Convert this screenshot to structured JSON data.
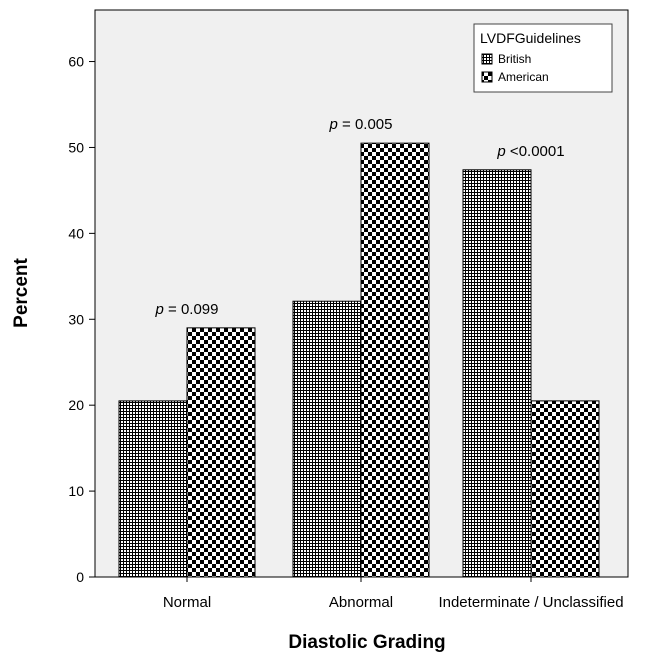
{
  "chart_data": {
    "type": "bar",
    "title": "",
    "xlabel": "Diastolic Grading",
    "ylabel": "Percent",
    "categories": [
      "Normal",
      "Abnormal",
      "Indeterminate / Unclassified"
    ],
    "series": [
      {
        "name": "British",
        "values": [
          20.5,
          32.1,
          47.4
        ],
        "pattern": "fine-grid"
      },
      {
        "name": "American",
        "values": [
          29.0,
          50.5,
          20.5
        ],
        "pattern": "checkerboard"
      }
    ],
    "annotations": [
      {
        "category": "Normal",
        "prefix": "p",
        "text": " = 0.099"
      },
      {
        "category": "Abnormal",
        "prefix": "p",
        "text": " = 0.005"
      },
      {
        "category": "Indeterminate / Unclassified",
        "prefix": "p",
        "text": " <0.0001"
      }
    ],
    "ylim": [
      0,
      66
    ],
    "yticks": [
      0,
      10,
      20,
      30,
      40,
      50,
      60
    ],
    "grid": false,
    "legend": {
      "title": "LVDFGuidelines",
      "position": "top-right"
    },
    "plot_background": "#f0f0f0",
    "bar_color": "#000000"
  }
}
